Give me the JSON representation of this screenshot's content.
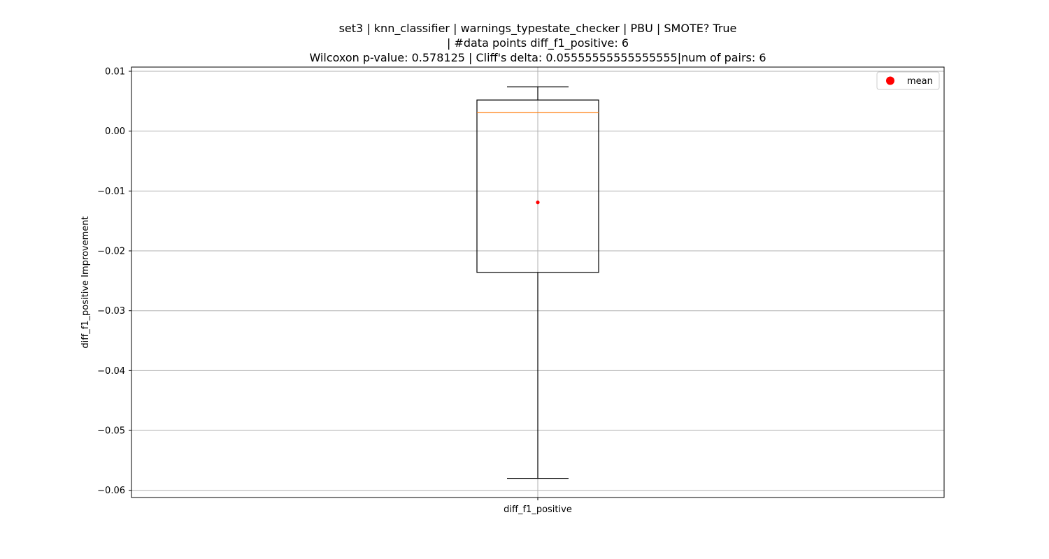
{
  "chart_data": {
    "type": "box",
    "title_lines": [
      "set3 | knn_classifier | warnings_typestate_checker | PBU | SMOTE? True",
      "| #data points diff_f1_positive: 6",
      "Wilcoxon p-value: 0.578125 | Cliff's delta: 0.05555555555555555|num of pairs: 6"
    ],
    "xlabel": "",
    "ylabel": "diff_f1_positive Improvement",
    "categories": [
      "diff_f1_positive"
    ],
    "ylim": [
      -0.0612,
      0.0107
    ],
    "yticks": [
      0.01,
      0.0,
      -0.01,
      -0.02,
      -0.03,
      -0.04,
      -0.05,
      -0.06
    ],
    "ytick_labels": [
      "0.01",
      "0.00",
      "−0.01",
      "−0.02",
      "−0.03",
      "−0.04",
      "−0.05",
      "−0.06"
    ],
    "grid": true,
    "boxes": [
      {
        "name": "diff_f1_positive",
        "whisker_low": -0.058,
        "q1": -0.0236,
        "median": 0.0031,
        "q3": 0.0052,
        "whisker_high": 0.0074,
        "mean": -0.0119
      }
    ],
    "colors": {
      "box": "#000000",
      "median": "#ff7f0e",
      "mean": "#ff0000",
      "grid": "#b0b0b0"
    },
    "legend": {
      "position": "upper-right",
      "entries": [
        {
          "label": "mean",
          "marker": "dot",
          "color": "#ff0000"
        }
      ]
    }
  }
}
